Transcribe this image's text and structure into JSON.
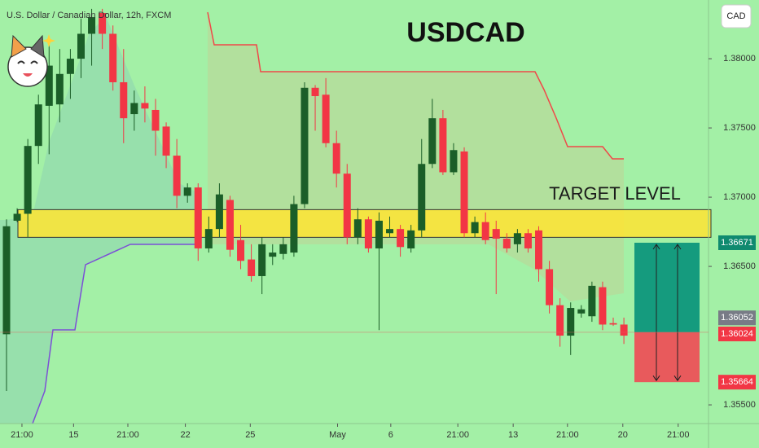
{
  "chart_data": {
    "type": "candlestick",
    "header": "U.S. Dollar / Canadian Dollar, 12h, FXCM",
    "title": "USDCAD",
    "currency": "CAD",
    "up_color": "#1b5e28",
    "down_color": "#f23645",
    "x": [
      0,
      1,
      2,
      3,
      4,
      5,
      6,
      7,
      8,
      9,
      10,
      11,
      12,
      13,
      14,
      15,
      16,
      17,
      18,
      19,
      20,
      21,
      22,
      23,
      24,
      25,
      26,
      27,
      28,
      29,
      30,
      31,
      32,
      33,
      34,
      35,
      36,
      37,
      38,
      39,
      40,
      41,
      42,
      43,
      44,
      45,
      46,
      47,
      48,
      49,
      50,
      51,
      52,
      53,
      54,
      55,
      56,
      57,
      58
    ],
    "open": [
      1.3601,
      1.3683,
      1.3688,
      1.3737,
      1.3766,
      1.3767,
      1.3789,
      1.38,
      1.3818,
      1.3833,
      1.3818,
      1.3783,
      1.376,
      1.3768,
      1.3763,
      1.3751,
      1.373,
      1.3701,
      1.3707,
      1.3663,
      1.3677,
      1.3698,
      1.3669,
      1.3655,
      1.3643,
      1.3657,
      1.3659,
      1.366,
      1.3695,
      1.3779,
      1.3774,
      1.3739,
      1.3717,
      1.3671,
      1.3684,
      1.3663,
      1.3674,
      1.3677,
      1.3663,
      1.3676,
      1.3724,
      1.3757,
      1.3718,
      1.3733,
      1.3674,
      1.3682,
      1.3677,
      1.367,
      1.3666,
      1.3674,
      1.3676,
      1.3648,
      1.3622,
      1.36,
      1.3616,
      1.3614,
      1.3635,
      1.3609,
      1.3608
    ],
    "high": [
      1.3684,
      1.3692,
      1.3742,
      1.3774,
      1.381,
      1.3807,
      1.3807,
      1.3829,
      1.3836,
      1.3836,
      1.3824,
      1.3807,
      1.3777,
      1.378,
      1.3771,
      1.3754,
      1.3742,
      1.371,
      1.371,
      1.3686,
      1.371,
      1.3701,
      1.368,
      1.3666,
      1.3671,
      1.3666,
      1.3671,
      1.3701,
      1.3783,
      1.3781,
      1.3786,
      1.3748,
      1.3724,
      1.3692,
      1.3686,
      1.3689,
      1.3686,
      1.368,
      1.368,
      1.3742,
      1.3771,
      1.3763,
      1.3739,
      1.3736,
      1.3686,
      1.3689,
      1.3683,
      1.3674,
      1.3677,
      1.3677,
      1.3679,
      1.3654,
      1.3627,
      1.3624,
      1.3622,
      1.3639,
      1.3639,
      1.3613,
      1.3613
    ],
    "low": [
      1.356,
      1.3682,
      1.3671,
      1.3724,
      1.3731,
      1.3754,
      1.3771,
      1.3786,
      1.3795,
      1.3807,
      1.3777,
      1.3739,
      1.3748,
      1.3754,
      1.373,
      1.3721,
      1.3692,
      1.3696,
      1.3654,
      1.366,
      1.3671,
      1.3657,
      1.3648,
      1.3639,
      1.363,
      1.3651,
      1.3655,
      1.3657,
      1.3692,
      1.3748,
      1.3736,
      1.3707,
      1.3666,
      1.3666,
      1.366,
      1.3604,
      1.3671,
      1.3657,
      1.366,
      1.3671,
      1.3721,
      1.3716,
      1.3716,
      1.3671,
      1.3671,
      1.3666,
      1.363,
      1.366,
      1.366,
      1.366,
      1.3639,
      1.3616,
      1.3592,
      1.3586,
      1.3613,
      1.361,
      1.3604,
      1.3607,
      1.3594
    ],
    "close": [
      1.3679,
      1.3688,
      1.3737,
      1.3767,
      1.3795,
      1.3789,
      1.38,
      1.3818,
      1.383,
      1.3818,
      1.3783,
      1.3757,
      1.3768,
      1.3764,
      1.3748,
      1.373,
      1.3701,
      1.3707,
      1.3663,
      1.3677,
      1.3702,
      1.3662,
      1.3654,
      1.3643,
      1.3666,
      1.366,
      1.3666,
      1.3695,
      1.3779,
      1.3773,
      1.3739,
      1.3717,
      1.3671,
      1.3684,
      1.3663,
      1.3683,
      1.3677,
      1.3664,
      1.3676,
      1.3724,
      1.3757,
      1.3718,
      1.3734,
      1.3674,
      1.3682,
      1.3669,
      1.367,
      1.3663,
      1.3674,
      1.3663,
      1.3648,
      1.3622,
      1.36,
      1.362,
      1.3619,
      1.3636,
      1.3608,
      1.3608,
      1.36
    ],
    "xlim": [
      -0.612,
      65.95
    ],
    "xticks": [
      {
        "value": 1.45,
        "label": "21:00"
      },
      {
        "value": 6.3,
        "label": "15"
      },
      {
        "value": 11.4,
        "label": "21:00"
      },
      {
        "value": 16.8,
        "label": "22"
      },
      {
        "value": 22.9,
        "label": "25"
      },
      {
        "value": 31.1,
        "label": "May"
      },
      {
        "value": 36.1,
        "label": "6"
      },
      {
        "value": 42.4,
        "label": "21:00"
      },
      {
        "value": 47.6,
        "label": "13"
      },
      {
        "value": 52.7,
        "label": "21:00"
      },
      {
        "value": 57.9,
        "label": "20"
      },
      {
        "value": 63.1,
        "label": "21:00"
      }
    ],
    "ylim": [
      1.35365,
      1.38424
    ],
    "yticks": [
      {
        "value": 1.38,
        "label": "1.38000"
      },
      {
        "value": 1.375,
        "label": "1.37500"
      },
      {
        "value": 1.37,
        "label": "1.37000"
      },
      {
        "value": 1.365,
        "label": "1.36500"
      },
      {
        "value": 1.355,
        "label": "1.35500"
      }
    ],
    "zone": {
      "label": "TARGET LEVEL",
      "low": 1.3671,
      "high": 1.3691
    },
    "position": {
      "target": 1.36671,
      "current": 1.36052,
      "entry": 1.36024,
      "stop": 1.35664
    }
  }
}
